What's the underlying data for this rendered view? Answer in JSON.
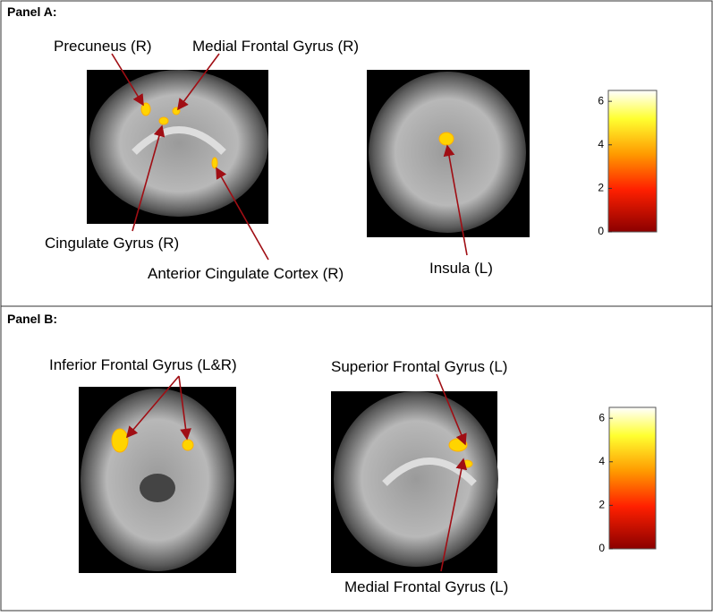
{
  "panels": [
    {
      "title": "Panel A:",
      "labels": [
        "Precuneus (R)",
        "Medial Frontal Gyrus (R)",
        "Cingulate Gyrus (R)",
        "Anterior Cingulate Cortex (R)",
        "Insula (L)"
      ],
      "colorbar": {
        "lim": [
          0,
          6.5
        ],
        "ticks": [
          0,
          2,
          4,
          6
        ]
      }
    },
    {
      "title": "Panel B:",
      "labels": [
        "Inferior Frontal Gyrus (L&R)",
        "Superior Frontal Gyrus (L)",
        "Medial Frontal Gyrus (L)"
      ],
      "colorbar": {
        "lim": [
          0,
          6.5
        ],
        "ticks": [
          0,
          2,
          4,
          6
        ]
      }
    }
  ]
}
